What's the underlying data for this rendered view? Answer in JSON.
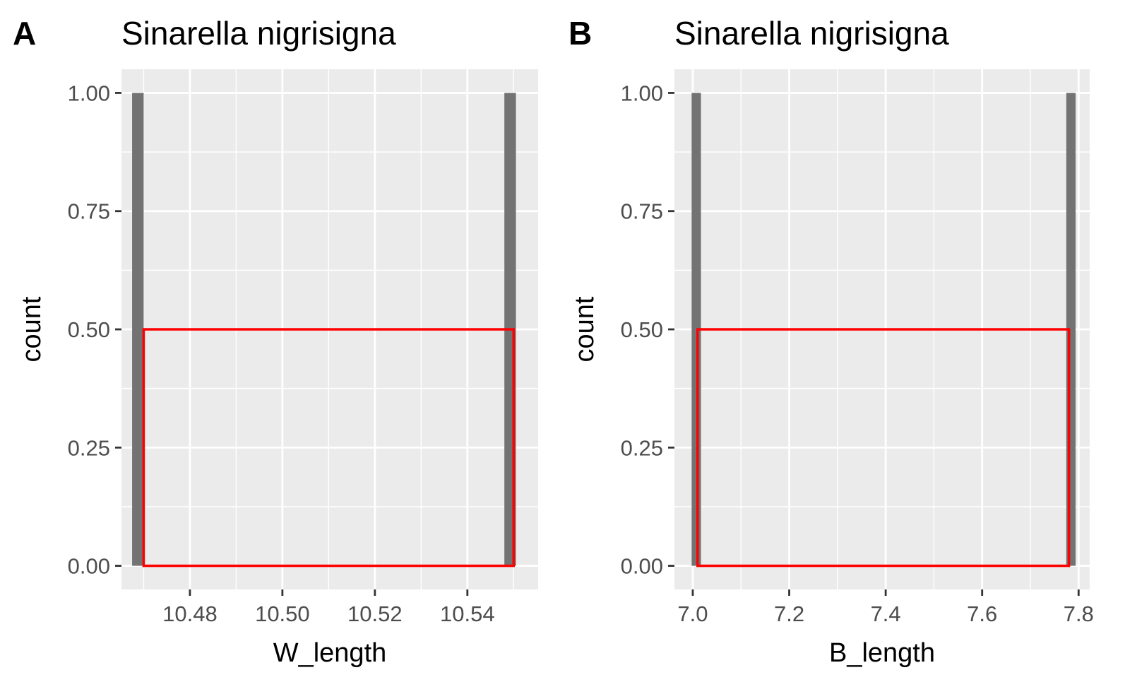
{
  "chart_data": [
    {
      "type": "bar",
      "tag": "A",
      "title": "Sinarella nigrisigna",
      "xlabel": "W_length",
      "ylabel": "count",
      "xlim": [
        10.4652,
        10.5553
      ],
      "ylim": [
        -0.05,
        1.05
      ],
      "x_ticks": [
        10.48,
        10.5,
        10.52,
        10.54
      ],
      "x_tick_labels": [
        "10.48",
        "10.50",
        "10.52",
        "10.54"
      ],
      "y_ticks": [
        0.0,
        0.25,
        0.5,
        0.75,
        1.0
      ],
      "y_tick_labels": [
        "0.00",
        "0.25",
        "0.50",
        "0.75",
        "1.00"
      ],
      "grid": true,
      "bars": [
        {
          "x0": 10.4675,
          "x1": 10.47,
          "count": 1.0
        },
        {
          "x0": 10.548,
          "x1": 10.5505,
          "count": 1.0
        }
      ],
      "bar_color": "#737373",
      "overlay_rect": {
        "x0": 10.47,
        "x1": 10.55,
        "y0": 0.0,
        "y1": 0.5,
        "color": "#ff0000"
      }
    },
    {
      "type": "bar",
      "tag": "B",
      "title": "Sinarella nigrisigna",
      "xlabel": "B_length",
      "ylabel": "count",
      "xlim": [
        6.962,
        7.823
      ],
      "ylim": [
        -0.05,
        1.05
      ],
      "x_ticks": [
        7.0,
        7.2,
        7.4,
        7.6,
        7.8
      ],
      "x_tick_labels": [
        "7.0",
        "7.2",
        "7.4",
        "7.6",
        "7.8"
      ],
      "y_ticks": [
        0.0,
        0.25,
        0.5,
        0.75,
        1.0
      ],
      "y_tick_labels": [
        "0.00",
        "0.25",
        "0.50",
        "0.75",
        "1.00"
      ],
      "grid": true,
      "bars": [
        {
          "x0": 6.9977,
          "x1": 7.017,
          "count": 1.0
        },
        {
          "x0": 7.7745,
          "x1": 7.7938,
          "count": 1.0
        }
      ],
      "bar_color": "#737373",
      "overlay_rect": {
        "x0": 7.01,
        "x1": 7.78,
        "y0": 0.0,
        "y1": 0.5,
        "color": "#ff0000"
      }
    }
  ]
}
